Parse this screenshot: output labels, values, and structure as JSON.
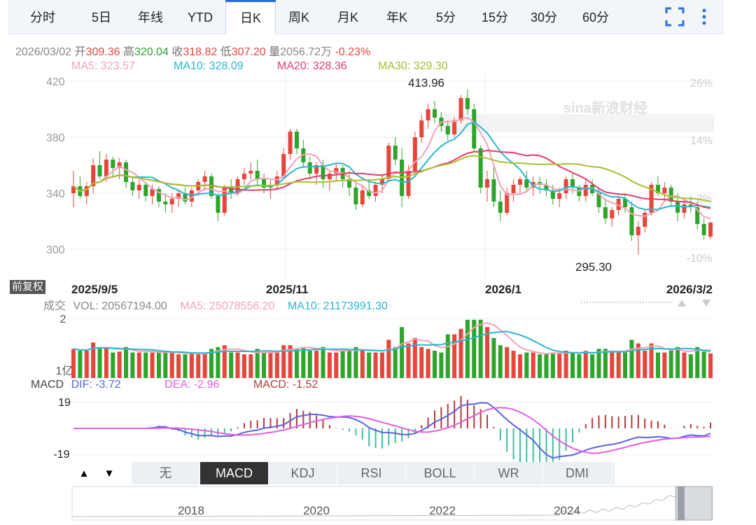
{
  "tabs": [
    {
      "label": "分时",
      "active": false
    },
    {
      "label": "5日",
      "active": false
    },
    {
      "label": "年线",
      "active": false
    },
    {
      "label": "YTD",
      "active": false
    },
    {
      "label": "日K",
      "active": true
    },
    {
      "label": "周K",
      "active": false
    },
    {
      "label": "月K",
      "active": false
    },
    {
      "label": "年K",
      "active": false
    },
    {
      "label": "5分",
      "active": false
    },
    {
      "label": "15分",
      "active": false
    },
    {
      "label": "30分",
      "active": false
    },
    {
      "label": "60分",
      "active": false
    }
  ],
  "toolbar_icons": [
    "fullscreen-icon",
    "more-vertical-icon"
  ],
  "quote": {
    "date": "2026/03/02",
    "open_label": "开",
    "open": "309.36",
    "high_label": "高",
    "high": "320.04",
    "close_label": "收",
    "close": "318.82",
    "low_label": "低",
    "low": "307.20",
    "volume_label": "量",
    "volume": "2056.72万",
    "change": "-0.23%"
  },
  "ma_legend": {
    "ma5": "MA5: 323.57",
    "ma10": "MA10: 328.09",
    "ma20": "MA20: 328.36",
    "ma30": "MA30: 329.30"
  },
  "colors": {
    "up": "#e5463b",
    "down": "#2da52a",
    "ma5": "#f4a1b8",
    "ma10": "#27b7cf",
    "ma20": "#e23d6b",
    "ma30": "#a6bf2f",
    "dif": "#5a63e0",
    "dea": "#e35ee0"
  },
  "vol_legend": {
    "label": "成交",
    "vol": "VOL: 20567194.00",
    "ma5": "MA5: 25078556.20",
    "ma10": "MA10: 21173991.30"
  },
  "macd_legend": {
    "label": "MACD",
    "dif": "DIF: -3.72",
    "dea": "DEA: -2.96",
    "macd": "MACD: -1.52"
  },
  "fq_badge": "前复权",
  "watermark": "sina新浪财经",
  "indicator_tabs": [
    {
      "label": "无",
      "active": false
    },
    {
      "label": "MACD",
      "active": true
    },
    {
      "label": "KDJ",
      "active": false
    },
    {
      "label": "RSI",
      "active": false
    },
    {
      "label": "BOLL",
      "active": false
    },
    {
      "label": "WR",
      "active": false
    },
    {
      "label": "DMI",
      "active": false
    }
  ],
  "arrows": {
    "up": "▲",
    "down": "▼"
  },
  "navigator_years": [
    "2018",
    "2020",
    "2022",
    "2024"
  ],
  "chart_data": [
    {
      "type": "candlestick",
      "y_ticks": [
        "420",
        "380",
        "340",
        "300"
      ],
      "pct_ticks": [
        "26%",
        "14%",
        "2%",
        "-10%"
      ],
      "x_ticks": [
        "2025/9/5",
        "2025/11",
        "2026/1",
        "2026/3/2"
      ],
      "ylim": [
        295,
        420
      ],
      "annotations": [
        {
          "label": "413.96",
          "value": 413.96
        },
        {
          "label": "295.30",
          "value": 295.3
        }
      ],
      "grid": true,
      "series": [
        {
          "name": "MA5"
        },
        {
          "name": "MA10"
        },
        {
          "name": "MA20"
        },
        {
          "name": "MA30"
        }
      ],
      "candles_approx": [
        [
          340,
          356,
          330,
          345
        ],
        [
          345,
          352,
          336,
          338
        ],
        [
          338,
          348,
          332,
          345
        ],
        [
          345,
          365,
          340,
          360
        ],
        [
          360,
          370,
          350,
          352
        ],
        [
          352,
          368,
          348,
          364
        ],
        [
          364,
          366,
          352,
          358
        ],
        [
          358,
          365,
          350,
          362
        ],
        [
          362,
          364,
          344,
          348
        ],
        [
          348,
          352,
          338,
          342
        ],
        [
          342,
          350,
          336,
          346
        ],
        [
          346,
          348,
          334,
          338
        ],
        [
          338,
          346,
          332,
          343
        ],
        [
          343,
          345,
          330,
          334
        ],
        [
          334,
          340,
          326,
          332
        ],
        [
          332,
          340,
          326,
          336
        ],
        [
          336,
          342,
          330,
          340
        ],
        [
          340,
          344,
          332,
          334
        ],
        [
          334,
          344,
          330,
          342
        ],
        [
          342,
          350,
          338,
          348
        ],
        [
          348,
          356,
          342,
          352
        ],
        [
          352,
          354,
          336,
          338
        ],
        [
          338,
          340,
          320,
          326
        ],
        [
          326,
          346,
          324,
          344
        ],
        [
          344,
          350,
          336,
          340
        ],
        [
          340,
          352,
          338,
          350
        ],
        [
          350,
          358,
          346,
          354
        ],
        [
          354,
          362,
          350,
          356
        ],
        [
          356,
          364,
          346,
          350
        ],
        [
          350,
          354,
          340,
          344
        ],
        [
          344,
          350,
          336,
          346
        ],
        [
          346,
          356,
          342,
          352
        ],
        [
          352,
          372,
          350,
          368
        ],
        [
          368,
          386,
          364,
          384
        ],
        [
          384,
          386,
          368,
          372
        ],
        [
          372,
          378,
          358,
          362
        ],
        [
          362,
          366,
          350,
          354
        ],
        [
          354,
          362,
          346,
          360
        ],
        [
          360,
          364,
          344,
          350
        ],
        [
          350,
          356,
          342,
          354
        ],
        [
          354,
          362,
          348,
          358
        ],
        [
          358,
          360,
          344,
          350
        ],
        [
          350,
          356,
          338,
          344
        ],
        [
          344,
          348,
          328,
          332
        ],
        [
          332,
          346,
          330,
          342
        ],
        [
          342,
          350,
          336,
          338
        ],
        [
          338,
          348,
          334,
          346
        ],
        [
          346,
          354,
          340,
          350
        ],
        [
          350,
          376,
          348,
          374
        ],
        [
          374,
          380,
          360,
          364
        ],
        [
          364,
          372,
          330,
          338
        ],
        [
          338,
          360,
          336,
          356
        ],
        [
          356,
          384,
          354,
          380
        ],
        [
          380,
          396,
          376,
          392
        ],
        [
          392,
          404,
          386,
          400
        ],
        [
          400,
          406,
          390,
          394
        ],
        [
          394,
          398,
          384,
          388
        ],
        [
          388,
          392,
          378,
          382
        ],
        [
          382,
          394,
          380,
          392
        ],
        [
          392,
          410,
          390,
          408
        ],
        [
          408,
          414,
          396,
          400
        ],
        [
          400,
          404,
          370,
          372
        ],
        [
          372,
          374,
          340,
          344
        ],
        [
          344,
          356,
          334,
          350
        ],
        [
          350,
          360,
          330,
          334
        ],
        [
          334,
          342,
          320,
          326
        ],
        [
          326,
          344,
          324,
          340
        ],
        [
          340,
          350,
          334,
          346
        ],
        [
          346,
          352,
          340,
          350
        ],
        [
          350,
          356,
          342,
          344
        ],
        [
          344,
          352,
          338,
          348
        ],
        [
          348,
          352,
          340,
          346
        ],
        [
          346,
          350,
          338,
          342
        ],
        [
          342,
          346,
          332,
          336
        ],
        [
          336,
          344,
          330,
          340
        ],
        [
          340,
          352,
          336,
          350
        ],
        [
          350,
          354,
          340,
          344
        ],
        [
          344,
          346,
          334,
          338
        ],
        [
          338,
          350,
          334,
          346
        ],
        [
          346,
          350,
          338,
          340
        ],
        [
          340,
          344,
          326,
          330
        ],
        [
          330,
          336,
          318,
          322
        ],
        [
          322,
          330,
          316,
          328
        ],
        [
          328,
          338,
          324,
          336
        ],
        [
          336,
          340,
          326,
          330
        ],
        [
          330,
          334,
          306,
          310
        ],
        [
          310,
          320,
          296,
          316
        ],
        [
          316,
          328,
          312,
          326
        ],
        [
          326,
          348,
          324,
          346
        ],
        [
          346,
          352,
          338,
          340
        ],
        [
          340,
          348,
          334,
          344
        ],
        [
          344,
          346,
          330,
          334
        ],
        [
          334,
          340,
          320,
          326
        ],
        [
          326,
          336,
          322,
          332
        ],
        [
          332,
          338,
          326,
          330
        ],
        [
          330,
          334,
          314,
          318
        ],
        [
          318,
          322,
          307,
          310
        ],
        [
          309,
          320,
          307,
          319
        ]
      ]
    },
    {
      "type": "bar",
      "title": "VOL",
      "y_ticks": [
        "2",
        "1亿"
      ],
      "series": [
        {
          "name": "VOL"
        },
        {
          "name": "MA5"
        },
        {
          "name": "MA10"
        }
      ]
    },
    {
      "type": "bar",
      "title": "MACD",
      "y_ticks": [
        "19",
        "-19"
      ],
      "series": [
        {
          "name": "DIF"
        },
        {
          "name": "DEA"
        },
        {
          "name": "MACD"
        }
      ]
    }
  ]
}
